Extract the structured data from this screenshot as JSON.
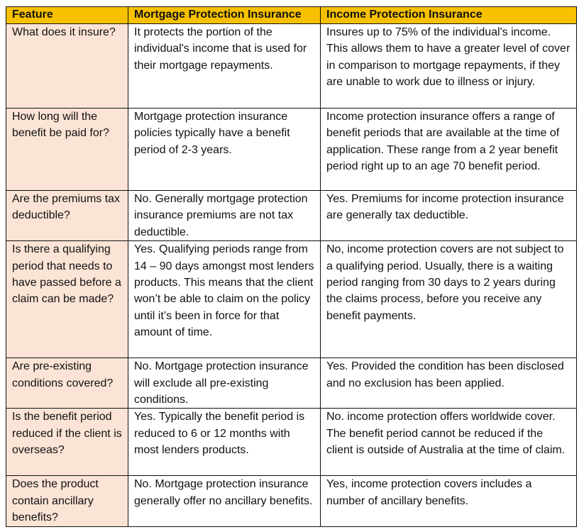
{
  "colors": {
    "header_background": "#f7c100",
    "feature_column_background": "#fbe4d5",
    "border": "#111111"
  },
  "table": {
    "headers": [
      "Feature",
      "Mortgage Protection Insurance",
      "Income Protection Insurance"
    ],
    "rows": [
      {
        "feature": "What does it insure?",
        "mortgage": "It protects the portion of the individual's income that is used for their mortgage repayments.",
        "income": "Insures up to 75% of the individual's income. This allows them to have a greater level of cover in comparison to mortgage repayments, if they are unable to work due to illness or injury."
      },
      {
        "feature": "How long will the benefit be paid for?",
        "mortgage": "Mortgage protection insurance policies typically have a benefit period of 2-3 years.",
        "income": "Income protection insurance offers a range of benefit periods that are available at the time of application.  These range from a 2 year benefit period right up to an age 70 benefit period."
      },
      {
        "feature": "Are the premiums tax deductible?",
        "mortgage": "No. Generally mortgage protection insurance premiums are not tax deductible.",
        "income": "Yes. Premiums for income protection insurance are generally tax deductible."
      },
      {
        "feature": "Is there a qualifying period that needs to have passed before a claim can be made?",
        "mortgage": "Yes. Qualifying periods range from 14 – 90 days amongst most lenders products. This means that the client won’t be able to claim on the policy until it’s been in force for that amount of time.",
        "income": "No, income protection covers are not subject to a qualifying period. Usually, there is a waiting period ranging from 30 days to 2 years during the claims process, before you receive any benefit payments."
      },
      {
        "feature": "Are pre-existing conditions covered?",
        "mortgage": "No. Mortgage protection insurance will exclude all pre-existing conditions.",
        "income": "Yes. Provided the condition has been disclosed and no exclusion has been applied."
      },
      {
        "feature": "Is the benefit period reduced if the client is overseas?",
        "mortgage": "Yes. Typically the benefit period is reduced to 6 or 12 months with most lenders products.",
        "income": "No. income protection offers worldwide cover. The benefit period cannot be reduced if the client is outside of Australia at the time of claim."
      },
      {
        "feature": "Does the product contain ancillary benefits?",
        "mortgage": "No. Mortgage protection insurance generally offer no ancillary benefits.",
        "income": "Yes, income protection covers includes a number of ancillary benefits."
      }
    ]
  }
}
